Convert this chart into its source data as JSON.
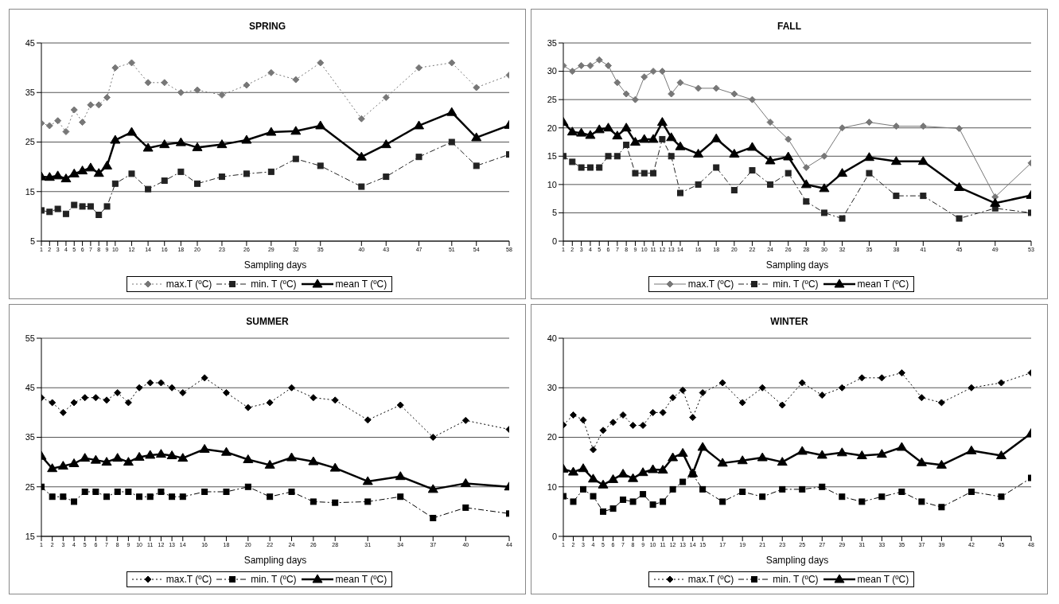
{
  "chart_data": [
    {
      "type": "line",
      "title": "SPRING",
      "xlabel": "Sampling days",
      "x": [
        1,
        2,
        3,
        4,
        5,
        6,
        7,
        8,
        9,
        10,
        12,
        14,
        16,
        18,
        20,
        23,
        26,
        29,
        32,
        35,
        40,
        43,
        47,
        51,
        54,
        58
      ],
      "xlim": [
        1,
        58
      ],
      "xticks": [
        1,
        2,
        3,
        4,
        5,
        6,
        7,
        8,
        9,
        10,
        12,
        14,
        16,
        18,
        20,
        23,
        26,
        29,
        32,
        35,
        40,
        43,
        47,
        51,
        54,
        58
      ],
      "ylim": [
        5,
        45
      ],
      "yticks": [
        5,
        15,
        25,
        35,
        45
      ],
      "grid": "y",
      "legend": "bottom",
      "series": [
        {
          "name": "max.T (ºC)",
          "color": "#777777",
          "marker": "diamond",
          "line_style": "dotted",
          "values": [
            28.8,
            28.3,
            29.3,
            27.1,
            31.5,
            29,
            32.5,
            32.5,
            34,
            40,
            41,
            37,
            37,
            35,
            35.5,
            34.5,
            36.5,
            39,
            37.6,
            41,
            29.7,
            34,
            40,
            41,
            36,
            38.5
          ]
        },
        {
          "name": "min. T (ºC)",
          "color": "#222222",
          "marker": "square",
          "line_style": "dashed",
          "values": [
            11.2,
            10.9,
            11.5,
            10.5,
            12.3,
            12,
            12,
            10.3,
            12,
            16.6,
            18.6,
            15.5,
            17.2,
            19,
            16.6,
            18,
            18.6,
            19,
            21.6,
            20.2,
            16,
            18,
            22,
            25,
            20.2,
            22.5
          ]
        },
        {
          "name": "mean T (ºC)",
          "color": "#000000",
          "marker": "triangle",
          "line_style": "solid",
          "values": [
            18,
            17.9,
            18.2,
            17.6,
            18.6,
            19.2,
            19.8,
            18.7,
            20.2,
            25.4,
            27,
            23.8,
            24.5,
            24.9,
            23.9,
            24.5,
            25.4,
            27,
            27.2,
            28.3,
            22,
            24.5,
            28.3,
            31,
            25.9,
            28.4
          ]
        }
      ]
    },
    {
      "type": "line",
      "title": "FALL",
      "xlabel": "Sampling days",
      "x": [
        1,
        2,
        3,
        4,
        5,
        6,
        7,
        8,
        9,
        10,
        11,
        12,
        13,
        14,
        16,
        18,
        20,
        22,
        24,
        26,
        28,
        30,
        32,
        35,
        38,
        41,
        45,
        49,
        53
      ],
      "xlim": [
        1,
        53
      ],
      "xticks": [
        1,
        2,
        3,
        4,
        5,
        6,
        7,
        8,
        9,
        10,
        11,
        12,
        13,
        14,
        16,
        18,
        20,
        22,
        24,
        26,
        28,
        30,
        32,
        35,
        38,
        41,
        45,
        49,
        53
      ],
      "ylim": [
        0,
        35
      ],
      "yticks": [
        0,
        5,
        10,
        15,
        20,
        25,
        30,
        35
      ],
      "grid": "y",
      "legend": "bottom",
      "series": [
        {
          "name": "max.T (ºC)",
          "color": "#777777",
          "marker": "diamond",
          "line_style": "solid",
          "values": [
            31,
            30,
            31,
            31,
            32,
            31,
            28,
            26,
            25,
            29,
            30,
            30,
            26,
            28,
            27,
            27,
            26,
            25,
            21,
            18,
            13,
            15,
            20,
            21,
            20.3,
            20.3,
            19.9,
            7.8,
            13.8
          ]
        },
        {
          "name": "min. T (ºC)",
          "color": "#222222",
          "marker": "square",
          "line_style": "dashed",
          "values": [
            15,
            14,
            13,
            13,
            13,
            15,
            15,
            17,
            12,
            12,
            12,
            18,
            15,
            8.5,
            10,
            13,
            9,
            12.5,
            10,
            12,
            7,
            5,
            4,
            12,
            8,
            8,
            4,
            5.8,
            5
          ]
        },
        {
          "name": "mean T (ºC)",
          "color": "#000000",
          "marker": "triangle",
          "line_style": "solid",
          "values": [
            21,
            19.3,
            19.1,
            18.7,
            19.7,
            20,
            18.6,
            20,
            17.5,
            18,
            18,
            21,
            18.3,
            16.7,
            15.4,
            18.1,
            15.4,
            16.6,
            14.2,
            14.9,
            10,
            9.3,
            12,
            14.8,
            14.1,
            14.1,
            9.5,
            6.7,
            8.1
          ]
        }
      ]
    },
    {
      "type": "line",
      "title": "SUMMER",
      "xlabel": "Sampling days",
      "x": [
        1,
        2,
        3,
        4,
        5,
        6,
        7,
        8,
        9,
        10,
        11,
        12,
        13,
        14,
        16,
        18,
        20,
        22,
        24,
        26,
        28,
        31,
        34,
        37,
        40,
        44
      ],
      "xlim": [
        1,
        44
      ],
      "xticks": [
        1,
        2,
        3,
        4,
        5,
        6,
        7,
        8,
        9,
        10,
        11,
        12,
        13,
        14,
        16,
        18,
        20,
        22,
        24,
        26,
        28,
        31,
        34,
        37,
        40,
        44
      ],
      "ylim": [
        15,
        55
      ],
      "yticks": [
        15,
        25,
        35,
        45,
        55
      ],
      "grid": "y",
      "legend": "bottom",
      "series": [
        {
          "name": "max.T (ºC)",
          "color": "#000000",
          "marker": "diamond",
          "line_style": "dotted",
          "values": [
            43,
            42,
            40,
            42,
            43,
            43,
            42.5,
            44,
            42,
            45,
            46,
            46,
            45,
            44,
            47,
            44,
            41,
            42,
            45,
            43,
            42.5,
            38.5,
            41.5,
            35,
            38.4,
            36.6
          ]
        },
        {
          "name": "min. T (ºC)",
          "color": "#000000",
          "marker": "square",
          "line_style": "dashed",
          "values": [
            25,
            23,
            23,
            22,
            24,
            24,
            23,
            24,
            24,
            23,
            23,
            24,
            23,
            23,
            24,
            24,
            25,
            23,
            24,
            22,
            21.8,
            22,
            23,
            18.7,
            20.8,
            19.6
          ]
        },
        {
          "name": "mean T (ºC)",
          "color": "#000000",
          "marker": "triangle",
          "line_style": "solid",
          "values": [
            31.2,
            28.7,
            29.2,
            29.7,
            30.8,
            30.4,
            30,
            30.8,
            30,
            31,
            31.4,
            31.6,
            31.3,
            30.8,
            32.6,
            32,
            30.5,
            29.4,
            30.9,
            30.1,
            28.8,
            26.1,
            27.1,
            24.5,
            25.7,
            25
          ]
        }
      ]
    },
    {
      "type": "line",
      "title": "WINTER",
      "xlabel": "Sampling days",
      "x": [
        1,
        2,
        3,
        4,
        5,
        6,
        7,
        8,
        9,
        10,
        11,
        12,
        13,
        14,
        15,
        17,
        19,
        21,
        23,
        25,
        27,
        29,
        31,
        33,
        35,
        37,
        39,
        42,
        45,
        48
      ],
      "xlim": [
        1,
        48
      ],
      "xticks": [
        1,
        2,
        3,
        4,
        5,
        6,
        7,
        8,
        9,
        10,
        11,
        12,
        13,
        14,
        15,
        17,
        19,
        21,
        23,
        25,
        27,
        29,
        31,
        33,
        35,
        37,
        39,
        42,
        45,
        48
      ],
      "ylim": [
        0,
        40
      ],
      "yticks": [
        0,
        10,
        20,
        30,
        40
      ],
      "grid": "y",
      "legend": "bottom",
      "series": [
        {
          "name": "max.T (ºC)",
          "color": "#000000",
          "marker": "diamond",
          "line_style": "dotted",
          "values": [
            22.5,
            24.5,
            23.5,
            17.5,
            21.4,
            23,
            24.5,
            22.4,
            22.4,
            25,
            25,
            28,
            29.5,
            24,
            29,
            31,
            27,
            30,
            26.5,
            31,
            28.5,
            30,
            32,
            32,
            33,
            28,
            27,
            30,
            31,
            33
          ]
        },
        {
          "name": "min. T (ºC)",
          "color": "#000000",
          "marker": "square",
          "line_style": "dashed",
          "values": [
            8.1,
            7,
            9.5,
            8.1,
            5,
            5.6,
            7.4,
            7,
            8.5,
            6.4,
            7,
            9.5,
            11,
            12.5,
            9.5,
            7,
            9,
            8,
            9.5,
            9.5,
            10,
            8,
            7,
            8,
            9,
            7,
            5.9,
            9,
            8,
            11.8
          ]
        },
        {
          "name": "mean T (ºC)",
          "color": "#000000",
          "marker": "triangle",
          "line_style": "solid",
          "values": [
            13.6,
            13,
            13.7,
            11.6,
            10.4,
            11.5,
            12.6,
            11.7,
            12.9,
            13.5,
            13.4,
            15.9,
            16.8,
            12.7,
            18,
            14.8,
            15.3,
            15.9,
            15,
            17.2,
            16.4,
            16.9,
            16.3,
            16.6,
            18,
            14.9,
            14.4,
            17.3,
            16.3,
            20.8
          ]
        }
      ]
    }
  ]
}
